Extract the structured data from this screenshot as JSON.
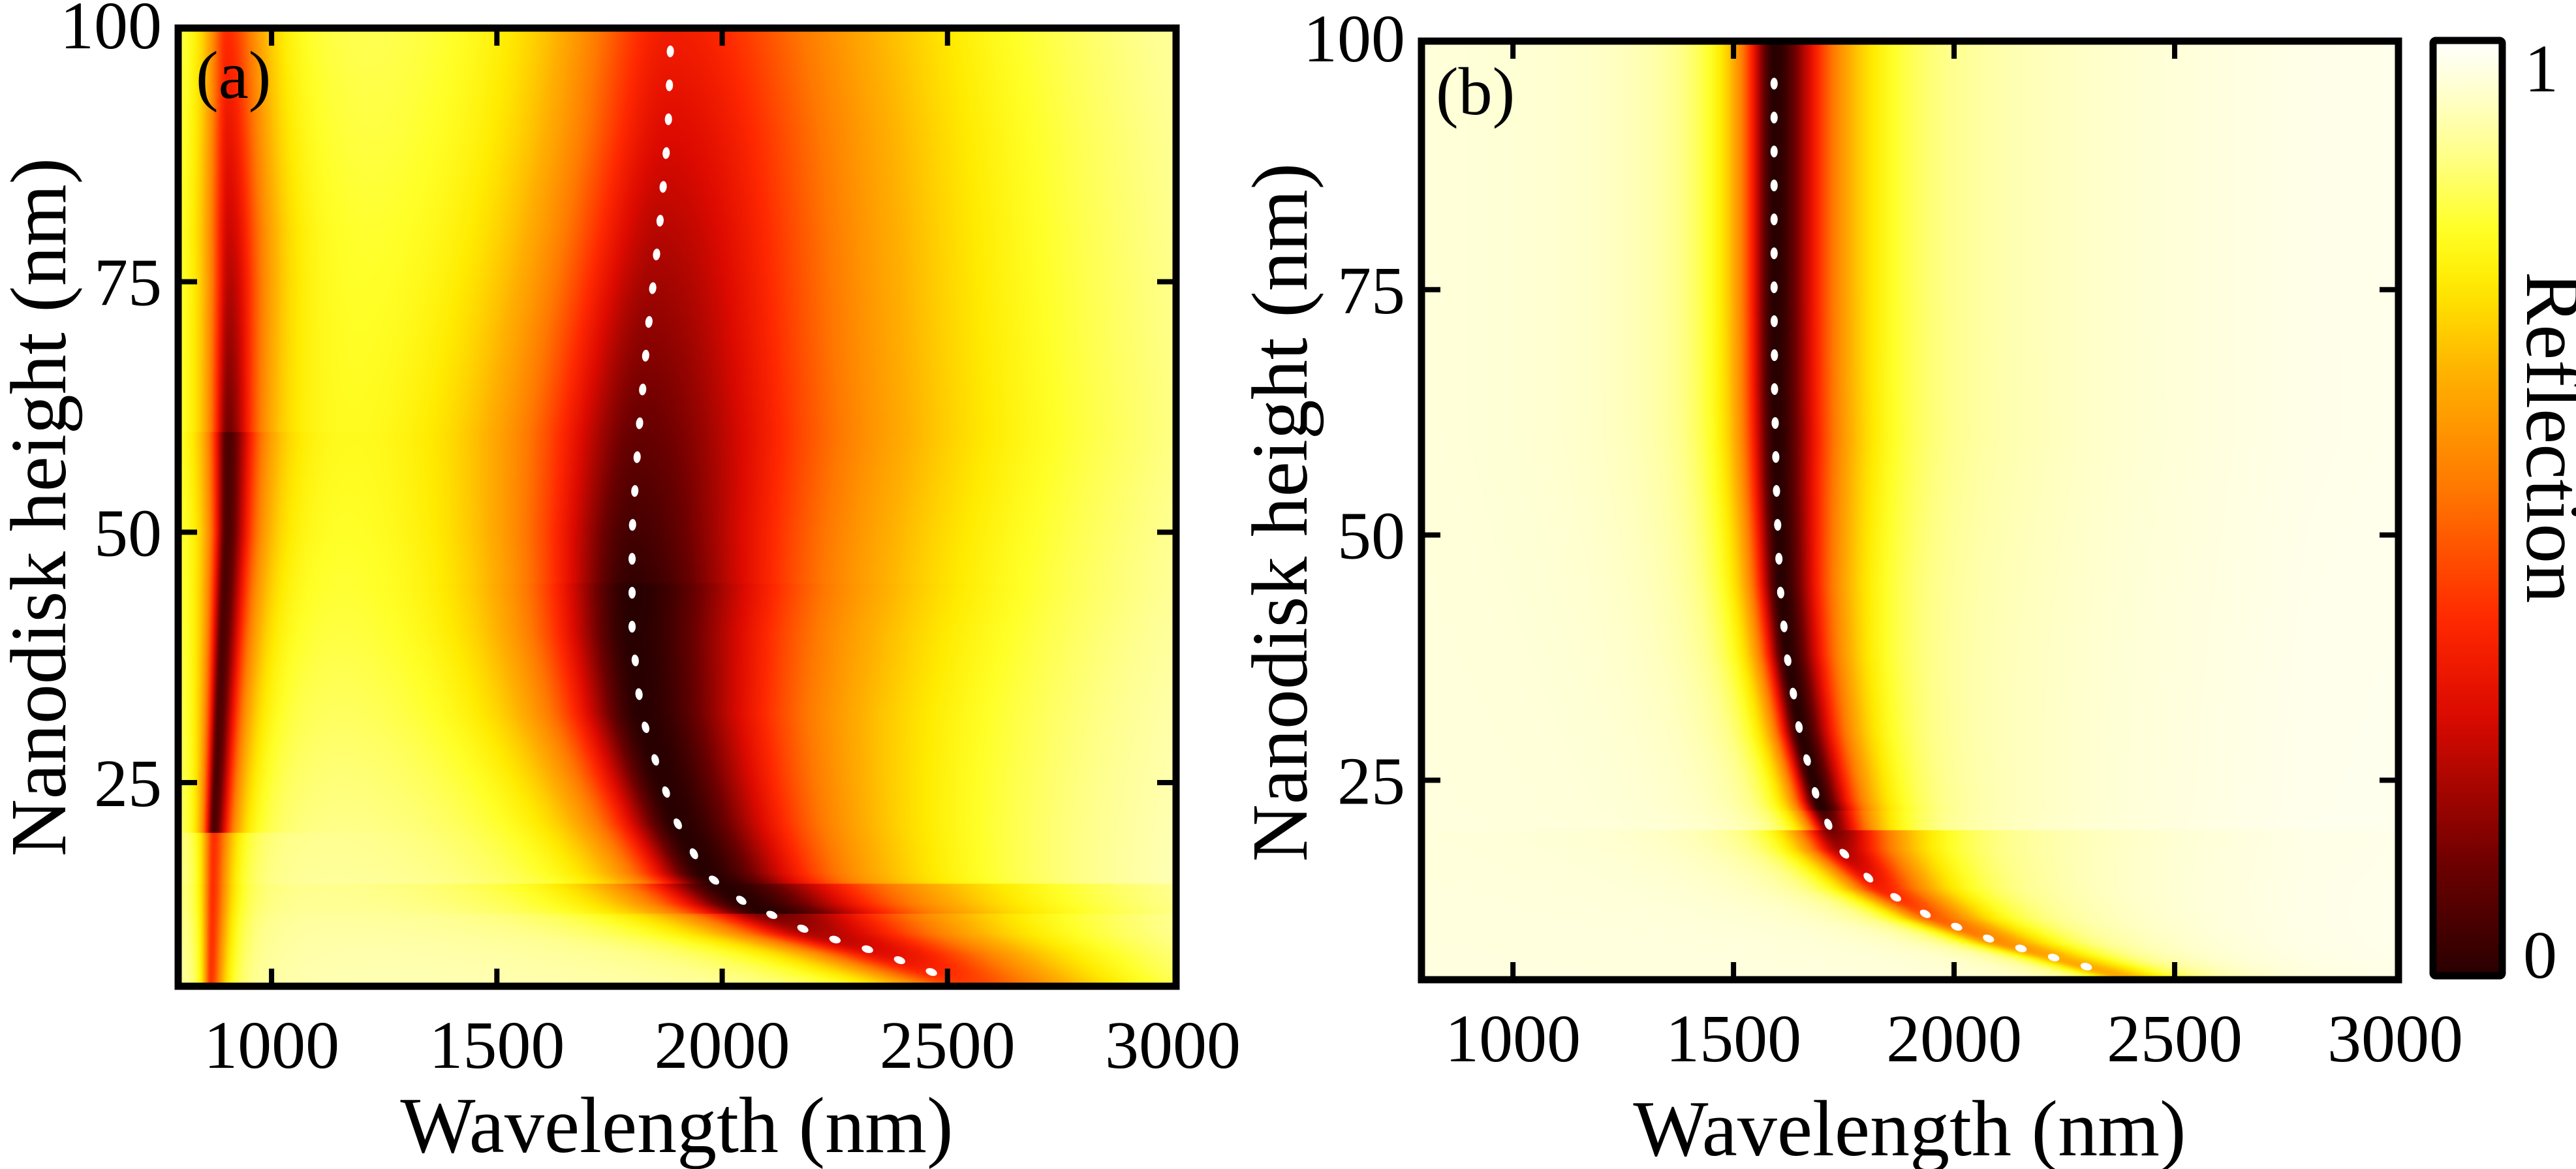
{
  "chart_data": [
    {
      "type": "heatmap",
      "panel_tag": "(a)",
      "xlabel": "Wavelength (nm)",
      "ylabel": "Nanodisk height (nm)",
      "xlim": [
        800,
        3000
      ],
      "ylim": [
        5,
        100
      ],
      "xticks": [
        1000,
        1500,
        2000,
        2500,
        3000
      ],
      "xtick_labels": [
        "1000",
        "1500",
        "2000",
        "2500",
        "3000"
      ],
      "yticks": [
        25,
        50,
        75,
        100
      ],
      "ytick_labels": [
        "25",
        "50",
        "75",
        "100"
      ],
      "grid": false,
      "colorscale": "hot",
      "z_range": [
        0,
        1
      ],
      "resonances": [
        {
          "name": "broad dip (dotted guide)",
          "style": "white-dotted",
          "points": [
            [
              1885,
              98
            ],
            [
              1880,
              90
            ],
            [
              1860,
              80
            ],
            [
              1835,
              70
            ],
            [
              1815,
              60
            ],
            [
              1800,
              50
            ],
            [
              1800,
              40
            ],
            [
              1820,
              32
            ],
            [
              1860,
              26
            ],
            [
              1900,
              21
            ],
            [
              1960,
              16
            ],
            [
              2050,
              13
            ],
            [
              2200,
              10
            ],
            [
              2350,
              8
            ],
            [
              2470,
              6
            ]
          ],
          "min_reflection": 0.0,
          "width_nm": 230
        },
        {
          "name": "narrow dip",
          "style": "none",
          "points": [
            [
              900,
              100
            ],
            [
              905,
              75
            ],
            [
              900,
              50
            ],
            [
              885,
              35
            ],
            [
              870,
              20
            ],
            [
              865,
              8
            ]
          ],
          "min_reflection": 0.05,
          "width_nm": 35
        }
      ],
      "background_reflection": 0.92
    },
    {
      "type": "heatmap",
      "panel_tag": "(b)",
      "xlabel": "Wavelength (nm)",
      "ylabel": "Nanodisk height (nm)",
      "xlim": [
        800,
        3000
      ],
      "ylim": [
        5,
        100
      ],
      "xticks": [
        1000,
        1500,
        2000,
        2500,
        3000
      ],
      "xtick_labels": [
        "1000",
        "1500",
        "2000",
        "2500",
        "3000"
      ],
      "yticks": [
        25,
        50,
        75,
        100
      ],
      "ytick_labels": [
        "25",
        "50",
        "75",
        "100"
      ],
      "grid": false,
      "colorscale": "hot",
      "z_range": [
        0,
        1
      ],
      "resonances": [
        {
          "name": "sharp dip (dotted guide)",
          "style": "white-dotted",
          "points": [
            [
              1592,
              96
            ],
            [
              1592,
              85
            ],
            [
              1592,
              75
            ],
            [
              1593,
              65
            ],
            [
              1597,
              55
            ],
            [
              1605,
              45
            ],
            [
              1620,
              38
            ],
            [
              1650,
              30
            ],
            [
              1690,
              23
            ],
            [
              1740,
              18
            ],
            [
              1830,
              14
            ],
            [
              1950,
              11
            ],
            [
              2100,
              8.5
            ],
            [
              2300,
              6
            ]
          ],
          "min_reflection": 0.0,
          "width_nm": 120
        }
      ],
      "background_reflection": 0.97
    }
  ],
  "colorbar": {
    "label": "Reflection",
    "min_label": "0",
    "max_label": "1",
    "range": [
      0,
      1
    ]
  }
}
